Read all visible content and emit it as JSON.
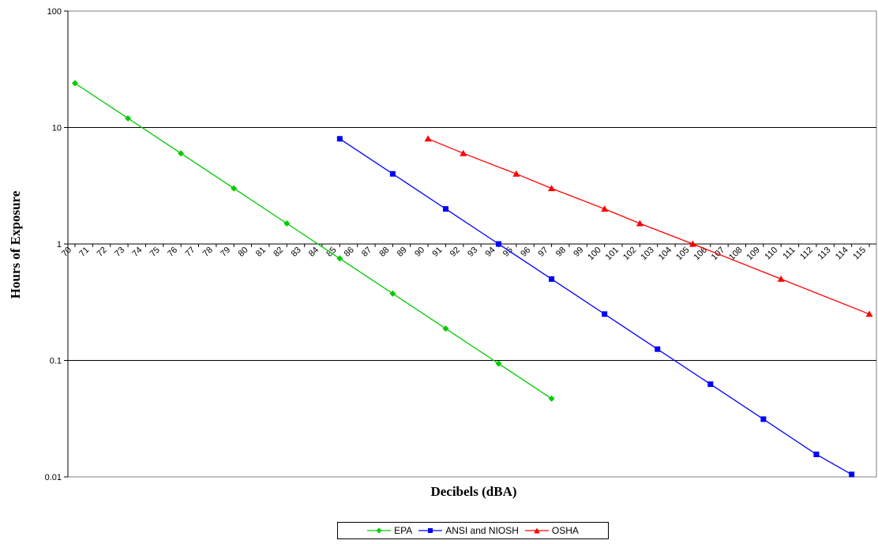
{
  "chart_data": {
    "type": "line",
    "title": "",
    "xlabel": "Decibels (dBA)",
    "ylabel": "Hours of Exposure",
    "yscale": "log",
    "ylim": [
      0.01,
      100
    ],
    "y_ticks": [
      "0.01",
      "0.1",
      "1",
      "10",
      "100"
    ],
    "x_categories": [
      "70",
      "71",
      "72",
      "73",
      "74",
      "75",
      "76",
      "77",
      "78",
      "79",
      "80",
      "81",
      "82",
      "83",
      "84",
      "85",
      "86",
      "87",
      "88",
      "89",
      "90",
      "91",
      "92",
      "93",
      "94",
      "95",
      "96",
      "97",
      "98",
      "99",
      "100",
      "101",
      "102",
      "103",
      "104",
      "105",
      "106",
      "107",
      "108",
      "109",
      "110",
      "111",
      "112",
      "113",
      "114",
      "115"
    ],
    "grid": "horizontal",
    "legend_position": "bottom",
    "series": [
      {
        "name": "EPA",
        "color": "#00cc00",
        "marker": "diamond",
        "x": [
          70,
          73,
          76,
          79,
          82,
          85,
          88,
          91,
          94,
          97
        ],
        "y": [
          24,
          12,
          6,
          3,
          1.5,
          0.75,
          0.375,
          0.1875,
          0.094,
          0.047
        ]
      },
      {
        "name": "ANSI and NIOSH",
        "color": "#0000ff",
        "marker": "square",
        "x": [
          85,
          88,
          91,
          94,
          97,
          100,
          103,
          106,
          109,
          112,
          114
        ],
        "y": [
          8,
          4,
          2,
          1,
          0.5,
          0.25,
          0.125,
          0.0625,
          0.0313,
          0.0156,
          0.0105
        ]
      },
      {
        "name": "OSHA",
        "color": "#ff0000",
        "marker": "triangle",
        "x": [
          90,
          92,
          95,
          97,
          100,
          102,
          105,
          110,
          115
        ],
        "y": [
          8,
          6,
          4,
          3,
          2,
          1.5,
          1,
          0.5,
          0.25
        ]
      }
    ]
  }
}
